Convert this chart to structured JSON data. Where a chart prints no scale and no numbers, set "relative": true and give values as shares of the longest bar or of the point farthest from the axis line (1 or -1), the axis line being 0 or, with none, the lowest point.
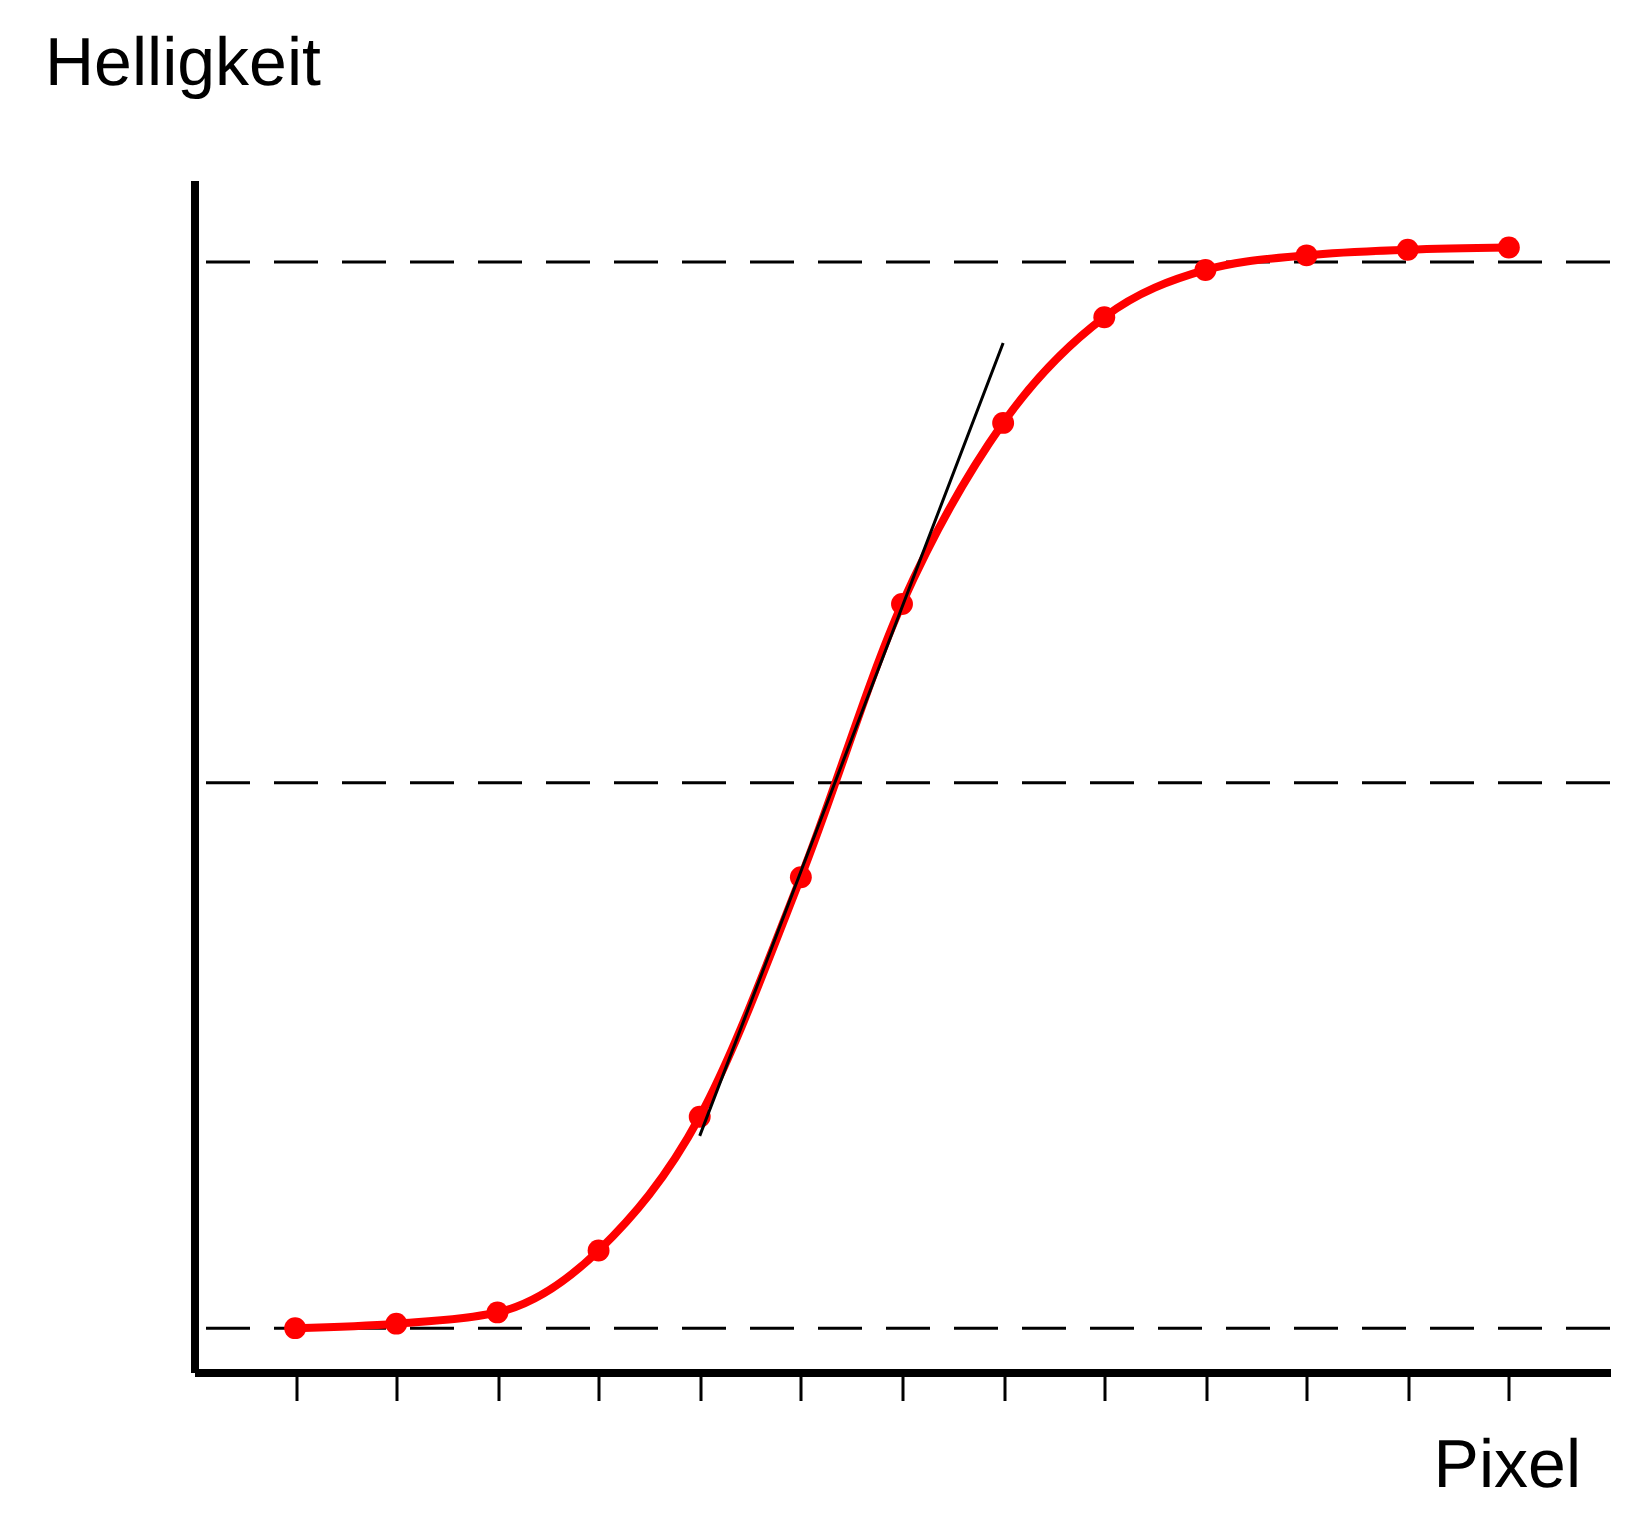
{
  "chart_data": {
    "type": "line",
    "relative": true,
    "xlabel": "Pixel",
    "ylabel": "Helligkeit",
    "categories": [
      null,
      null,
      null,
      null,
      null,
      null,
      null,
      null,
      null,
      null,
      null,
      null,
      null
    ],
    "series": [
      {
        "color": "#ff0000",
        "marker": "circle",
        "values": [
          0.039,
          0.043,
          0.053,
          0.108,
          0.227,
          0.44,
          0.683,
          0.844,
          0.938,
          0.98,
          0.993,
          0.998,
          1
        ]
      },
      {
        "color": "#000000",
        "marker": "none",
        "values": [
          null,
          null,
          null,
          null,
          0.21,
          0.445,
          0.68,
          0.915,
          null,
          null,
          null,
          null,
          null
        ]
      }
    ],
    "ref_lines": [
      {
        "axis": "y",
        "value": 0.987,
        "color": "#000000",
        "line_style": "dashed"
      },
      {
        "axis": "y",
        "value": 0.039,
        "color": "#000000",
        "line_style": "dashed"
      },
      {
        "axis": "y",
        "value": 0.524,
        "color": "#000000",
        "line_style": "dashed"
      }
    ],
    "grid": false
  }
}
